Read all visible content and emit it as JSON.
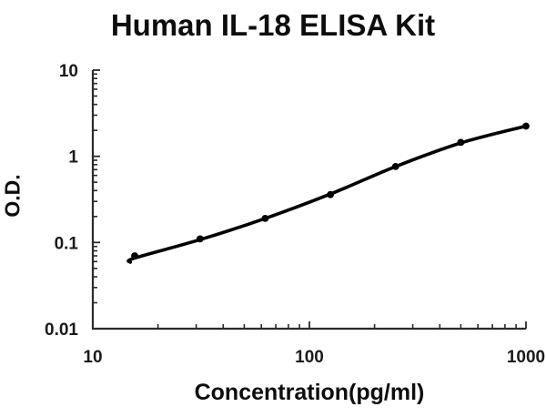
{
  "chart_data": {
    "type": "scatter",
    "title": "Human IL-18 ELISA Kit",
    "xlabel": "Concentration(pg/ml)",
    "ylabel": "O.D.",
    "x_scale": "log",
    "y_scale": "log",
    "xlim": [
      10,
      1000
    ],
    "ylim": [
      0.01,
      10
    ],
    "x_ticks": {
      "major": [
        10,
        100,
        1000
      ],
      "labels": [
        "10",
        "100",
        "1000"
      ]
    },
    "y_ticks": {
      "major": [
        10,
        1,
        0.1,
        0.01
      ],
      "labels": [
        "10",
        "1",
        "0.1",
        "0.01"
      ]
    },
    "grid": false,
    "legend": false,
    "series": [
      {
        "name": "standard-points",
        "type": "scatter",
        "x": [
          15.6,
          31.25,
          62.5,
          125,
          250,
          500,
          1000
        ],
        "y": [
          0.07,
          0.11,
          0.19,
          0.36,
          0.76,
          1.45,
          2.24
        ]
      },
      {
        "name": "fitted-curve",
        "type": "line",
        "x": [
          14.9,
          15.6,
          31.25,
          62.5,
          125,
          250,
          500,
          1000
        ],
        "y": [
          0.059,
          0.066,
          0.108,
          0.19,
          0.365,
          0.76,
          1.43,
          2.24
        ]
      }
    ],
    "colors": {
      "axis": "#2a2a2a",
      "line": "#000000",
      "marker": "#000000",
      "text": "#1a1a1a",
      "background": "#ffffff"
    }
  }
}
